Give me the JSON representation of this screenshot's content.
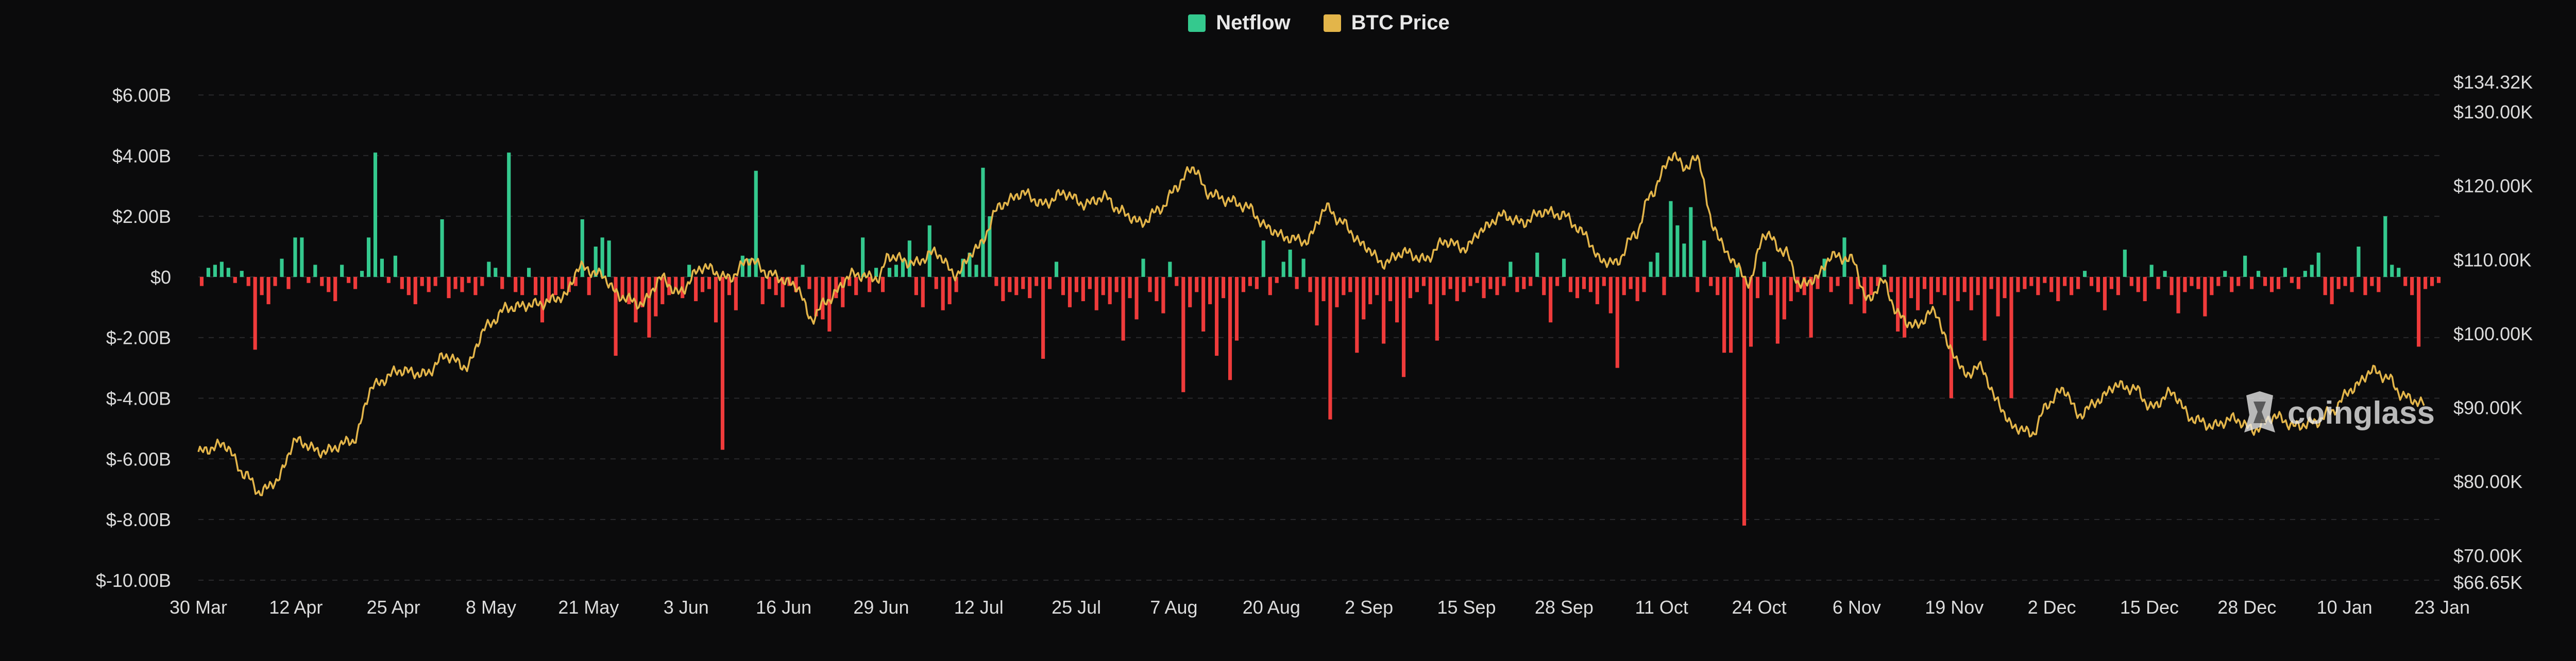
{
  "legend": [
    {
      "label": "Netflow",
      "color": "#34c98e"
    },
    {
      "label": "BTC Price",
      "color": "#e3b54a"
    }
  ],
  "watermark": "coinglass",
  "chart_data": {
    "type": "bar+line",
    "title": "",
    "left_axis": {
      "label": "Netflow",
      "range": [
        -10000000000,
        6500000000
      ],
      "tick_values": [
        6,
        4,
        2,
        0,
        -2,
        -4,
        -6,
        -8,
        -10
      ],
      "tick_labels": [
        "$6.00B",
        "$4.00B",
        "$2.00B",
        "$0",
        "$-2.00B",
        "$-4.00B",
        "$-6.00B",
        "$-8.00B",
        "$-10.00B"
      ]
    },
    "right_axis": {
      "label": "BTC Price",
      "range": [
        66650,
        134320
      ],
      "tick_values": [
        134320,
        130000,
        120000,
        110000,
        100000,
        90000,
        80000,
        70000,
        66650
      ],
      "tick_labels": [
        "$134.32K",
        "$130.00K",
        "$120.00K",
        "$110.00K",
        "$100.00K",
        "$90.00K",
        "$80.00K",
        "$70.00K",
        "$66.65K"
      ]
    },
    "x_labels": [
      "30 Mar",
      "12 Apr",
      "25 Apr",
      "8 May",
      "21 May",
      "3 Jun",
      "16 Jun",
      "29 Jun",
      "12 Jul",
      "25 Jul",
      "7 Aug",
      "20 Aug",
      "2 Sep",
      "15 Sep",
      "28 Sep",
      "11 Oct",
      "24 Oct",
      "6 Nov",
      "19 Nov",
      "2 Dec",
      "15 Dec",
      "28 Dec",
      "10 Jan",
      "23 Jan"
    ],
    "days": 300,
    "positive_color": "#34c98e",
    "negative_color": "#ef3b3b",
    "price_color": "#e3b54a",
    "netflow_billions": [
      -0.3,
      0.3,
      0.4,
      0.5,
      0.3,
      -0.2,
      0.2,
      -0.3,
      -2.4,
      -0.6,
      -0.9,
      -0.3,
      0.6,
      -0.4,
      1.3,
      1.3,
      -0.2,
      0.4,
      -0.3,
      -0.5,
      -0.8,
      0.4,
      -0.2,
      -0.4,
      0.2,
      1.3,
      4.1,
      0.6,
      -0.2,
      0.7,
      -0.4,
      -0.6,
      -0.9,
      -0.3,
      -0.5,
      -0.3,
      1.9,
      -0.7,
      -0.4,
      -0.5,
      -0.2,
      -0.6,
      -0.3,
      0.5,
      0.3,
      -0.4,
      4.1,
      -0.5,
      -0.6,
      0.3,
      -0.6,
      -1.5,
      -0.8,
      -0.6,
      -0.4,
      -0.5,
      -0.3,
      1.9,
      -0.6,
      1.0,
      1.3,
      1.2,
      -2.6,
      -0.7,
      -0.9,
      -1.5,
      -1.0,
      -2.0,
      -1.3,
      -0.9,
      -0.6,
      -0.4,
      -0.7,
      0.4,
      -0.8,
      -0.5,
      -0.4,
      -1.5,
      -5.7,
      -0.6,
      -1.1,
      0.7,
      0.6,
      3.5,
      -0.9,
      -0.4,
      -0.6,
      -1.0,
      -0.3,
      -0.5,
      0.4,
      -0.4,
      -1.3,
      -1.4,
      -1.8,
      -0.7,
      -1.0,
      -0.3,
      -0.6,
      1.3,
      -0.5,
      0.3,
      -0.5,
      0.3,
      0.4,
      0.6,
      1.2,
      -0.6,
      -1.0,
      1.7,
      -0.4,
      -1.1,
      -0.9,
      -0.5,
      0.6,
      0.8,
      0.4,
      3.6,
      2.0,
      -0.3,
      -0.8,
      -0.5,
      -0.6,
      -0.4,
      -0.7,
      -0.3,
      -2.7,
      -0.4,
      0.5,
      -0.6,
      -1.0,
      -0.5,
      -0.8,
      -0.4,
      -1.1,
      -0.6,
      -0.9,
      -0.5,
      -2.1,
      -0.7,
      -1.4,
      0.6,
      -0.5,
      -0.8,
      -1.2,
      0.5,
      -0.3,
      -3.8,
      -1.0,
      -0.5,
      -1.8,
      -0.9,
      -2.6,
      -0.7,
      -3.4,
      -2.1,
      -0.5,
      -0.3,
      -0.4,
      1.2,
      -0.6,
      -0.2,
      0.5,
      0.9,
      -0.4,
      0.6,
      -0.5,
      -1.6,
      -0.8,
      -4.7,
      -1.0,
      -0.6,
      -0.5,
      -2.5,
      -1.4,
      -0.9,
      -0.6,
      -2.2,
      -0.8,
      -1.5,
      -3.3,
      -0.7,
      -0.5,
      -0.3,
      -0.9,
      -2.1,
      -0.6,
      -0.4,
      -0.8,
      -0.5,
      -0.3,
      -0.2,
      -0.7,
      -0.4,
      -0.6,
      -0.3,
      0.5,
      -0.5,
      -0.4,
      -0.3,
      0.8,
      -0.6,
      -1.5,
      -0.3,
      0.6,
      -0.5,
      -0.7,
      -0.4,
      -0.5,
      -0.9,
      -0.3,
      -1.2,
      -3.0,
      -0.6,
      -0.4,
      -0.8,
      -0.5,
      0.5,
      0.8,
      -0.6,
      2.5,
      1.7,
      1.1,
      2.3,
      -0.5,
      1.2,
      -0.3,
      -0.6,
      -2.5,
      -2.5,
      0.4,
      -8.2,
      -2.3,
      -0.7,
      0.5,
      -0.6,
      -2.2,
      -1.4,
      -0.8,
      -0.5,
      -0.6,
      -2.0,
      -0.4,
      0.6,
      -0.5,
      -0.3,
      1.3,
      -0.9,
      -0.4,
      -1.2,
      -0.6,
      -0.3,
      0.4,
      -0.5,
      -1.8,
      -2.0,
      -0.7,
      -1.1,
      -0.4,
      -0.9,
      -0.5,
      -0.6,
      -4.0,
      -0.8,
      -0.5,
      -1.1,
      -0.6,
      -2.1,
      -0.4,
      -1.3,
      -0.7,
      -4.0,
      -0.5,
      -0.4,
      -0.3,
      -0.6,
      -0.2,
      -0.5,
      -0.8,
      -0.3,
      -0.6,
      -0.4,
      0.2,
      -0.3,
      -0.5,
      -1.1,
      -0.4,
      -0.6,
      0.9,
      -0.3,
      -0.5,
      -0.8,
      0.4,
      -0.4,
      0.2,
      -0.6,
      -1.2,
      -0.5,
      -0.3,
      -0.4,
      -1.3,
      -0.6,
      -0.3,
      0.2,
      -0.5,
      -0.3,
      0.7,
      -0.4,
      0.2,
      -0.3,
      -0.5,
      -0.4,
      0.3,
      -0.2,
      -0.4,
      0.2,
      0.4,
      0.8,
      -0.6,
      -0.9,
      -0.4,
      -0.3,
      -0.5,
      1.0,
      -0.6,
      -0.3,
      -0.5,
      2.0,
      0.4,
      0.3,
      -0.3,
      -0.6,
      -2.3,
      -0.4,
      -0.3,
      -0.2
    ],
    "price_keypoints": [
      [
        0,
        84000
      ],
      [
        5,
        85000
      ],
      [
        9,
        81000
      ],
      [
        12,
        78500
      ],
      [
        15,
        80000
      ],
      [
        19,
        85500
      ],
      [
        24,
        84000
      ],
      [
        30,
        85500
      ],
      [
        34,
        93000
      ],
      [
        39,
        95000
      ],
      [
        44,
        94500
      ],
      [
        48,
        97000
      ],
      [
        52,
        95500
      ],
      [
        56,
        101000
      ],
      [
        60,
        103500
      ],
      [
        66,
        104000
      ],
      [
        71,
        105000
      ],
      [
        74,
        109000
      ],
      [
        78,
        108000
      ],
      [
        82,
        105000
      ],
      [
        86,
        104000
      ],
      [
        90,
        107500
      ],
      [
        93,
        105500
      ],
      [
        98,
        109000
      ],
      [
        103,
        107500
      ],
      [
        107,
        110000
      ],
      [
        111,
        108000
      ],
      [
        116,
        106500
      ],
      [
        119,
        102000
      ],
      [
        122,
        104500
      ],
      [
        127,
        108000
      ],
      [
        132,
        107500
      ],
      [
        134,
        110500
      ],
      [
        139,
        109500
      ],
      [
        143,
        111000
      ],
      [
        147,
        108000
      ],
      [
        151,
        111500
      ],
      [
        156,
        117500
      ],
      [
        160,
        119000
      ],
      [
        164,
        117500
      ],
      [
        168,
        119000
      ],
      [
        172,
        117500
      ],
      [
        176,
        118500
      ],
      [
        179,
        116500
      ],
      [
        183,
        115000
      ],
      [
        187,
        117000
      ],
      [
        190,
        120000
      ],
      [
        193,
        122500
      ],
      [
        196,
        119000
      ],
      [
        200,
        118000
      ],
      [
        204,
        117000
      ],
      [
        207,
        114500
      ],
      [
        211,
        113000
      ],
      [
        215,
        112500
      ],
      [
        219,
        117000
      ],
      [
        222,
        115000
      ],
      [
        226,
        112000
      ],
      [
        230,
        109500
      ],
      [
        234,
        111000
      ],
      [
        238,
        110000
      ],
      [
        242,
        112500
      ],
      [
        246,
        111500
      ],
      [
        249,
        114000
      ],
      [
        253,
        116000
      ],
      [
        257,
        115000
      ],
      [
        261,
        116500
      ],
      [
        265,
        116000
      ],
      [
        269,
        113500
      ],
      [
        272,
        110000
      ],
      [
        275,
        109500
      ],
      [
        279,
        113500
      ],
      [
        282,
        119000
      ],
      [
        286,
        124000
      ],
      [
        289,
        122500
      ],
      [
        291,
        123800
      ],
      [
        294,
        114500
      ],
      [
        297,
        110500
      ],
      [
        301,
        107000
      ],
      [
        304,
        113500
      ],
      [
        308,
        111000
      ],
      [
        311,
        106500
      ],
      [
        314,
        107500
      ],
      [
        317,
        110500
      ],
      [
        321,
        110000
      ],
      [
        324,
        104500
      ],
      [
        327,
        107000
      ],
      [
        330,
        102500
      ],
      [
        333,
        101000
      ],
      [
        337,
        103000
      ],
      [
        340,
        98000
      ],
      [
        343,
        94500
      ],
      [
        346,
        95500
      ],
      [
        349,
        91000
      ],
      [
        352,
        87500
      ],
      [
        356,
        86500
      ],
      [
        359,
        90500
      ],
      [
        362,
        92500
      ],
      [
        365,
        89000
      ],
      [
        369,
        91000
      ],
      [
        372,
        93000
      ],
      [
        376,
        92500
      ],
      [
        379,
        90000
      ],
      [
        383,
        92000
      ],
      [
        387,
        88500
      ],
      [
        391,
        87500
      ],
      [
        395,
        88500
      ],
      [
        399,
        87000
      ],
      [
        403,
        88800
      ],
      [
        407,
        87500
      ],
      [
        411,
        88000
      ],
      [
        414,
        89500
      ],
      [
        418,
        92500
      ],
      [
        422,
        95000
      ],
      [
        425,
        94000
      ],
      [
        428,
        91500
      ],
      [
        432,
        90500
      ]
    ]
  }
}
